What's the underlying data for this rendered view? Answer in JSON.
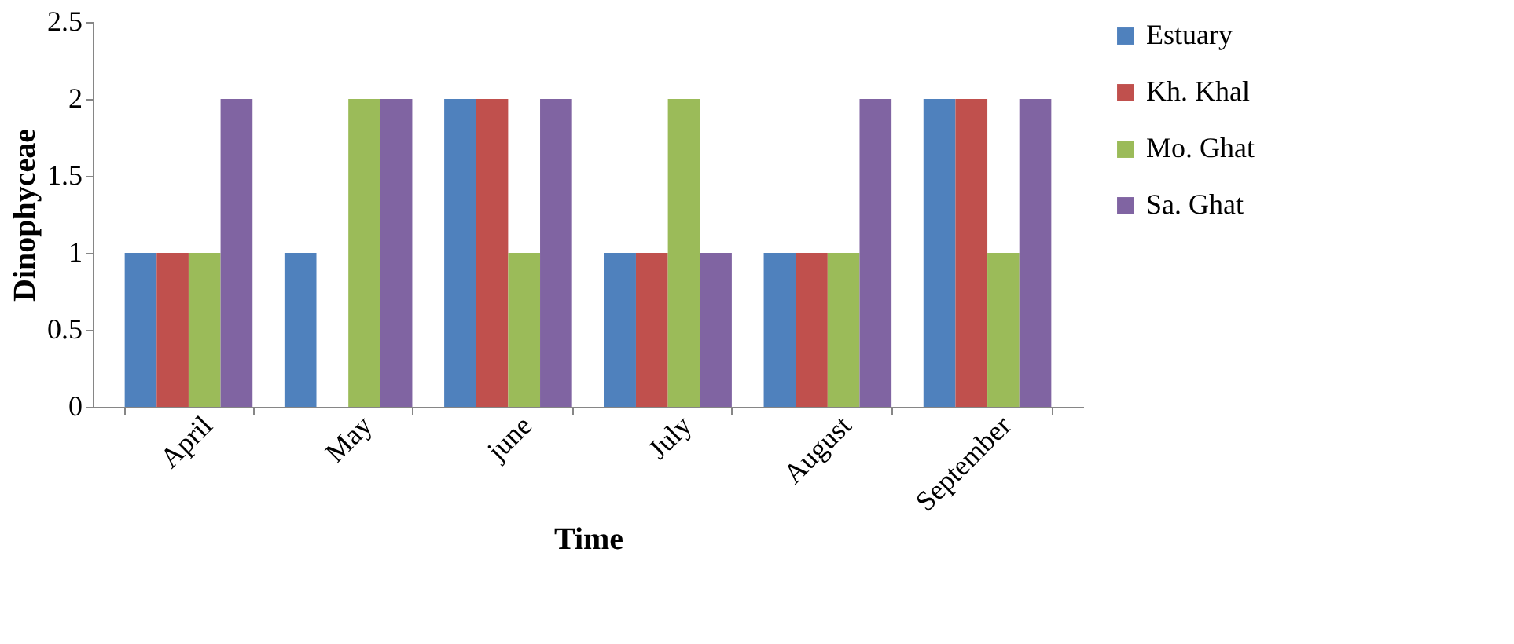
{
  "chart_data": {
    "type": "bar",
    "xlabel": "Time",
    "ylabel": "Dinophyceae",
    "categories": [
      "April",
      "May",
      "june",
      "July",
      "August",
      "September"
    ],
    "series": [
      {
        "name": "Estuary",
        "color": "#4f81bd",
        "values": [
          1,
          1,
          2,
          1,
          1,
          2
        ]
      },
      {
        "name": "Kh. Khal",
        "color": "#c0504d",
        "values": [
          1,
          0,
          2,
          1,
          1,
          2
        ]
      },
      {
        "name": "Mo. Ghat",
        "color": "#9bbb59",
        "values": [
          1,
          2,
          1,
          2,
          1,
          1
        ]
      },
      {
        "name": "Sa. Ghat",
        "color": "#8064a2",
        "values": [
          2,
          2,
          2,
          1,
          2,
          2
        ]
      }
    ],
    "ylim": [
      0,
      2.5
    ],
    "yticks": [
      0,
      0.5,
      1,
      1.5,
      2,
      2.5
    ],
    "grid": false,
    "legend": "right"
  }
}
